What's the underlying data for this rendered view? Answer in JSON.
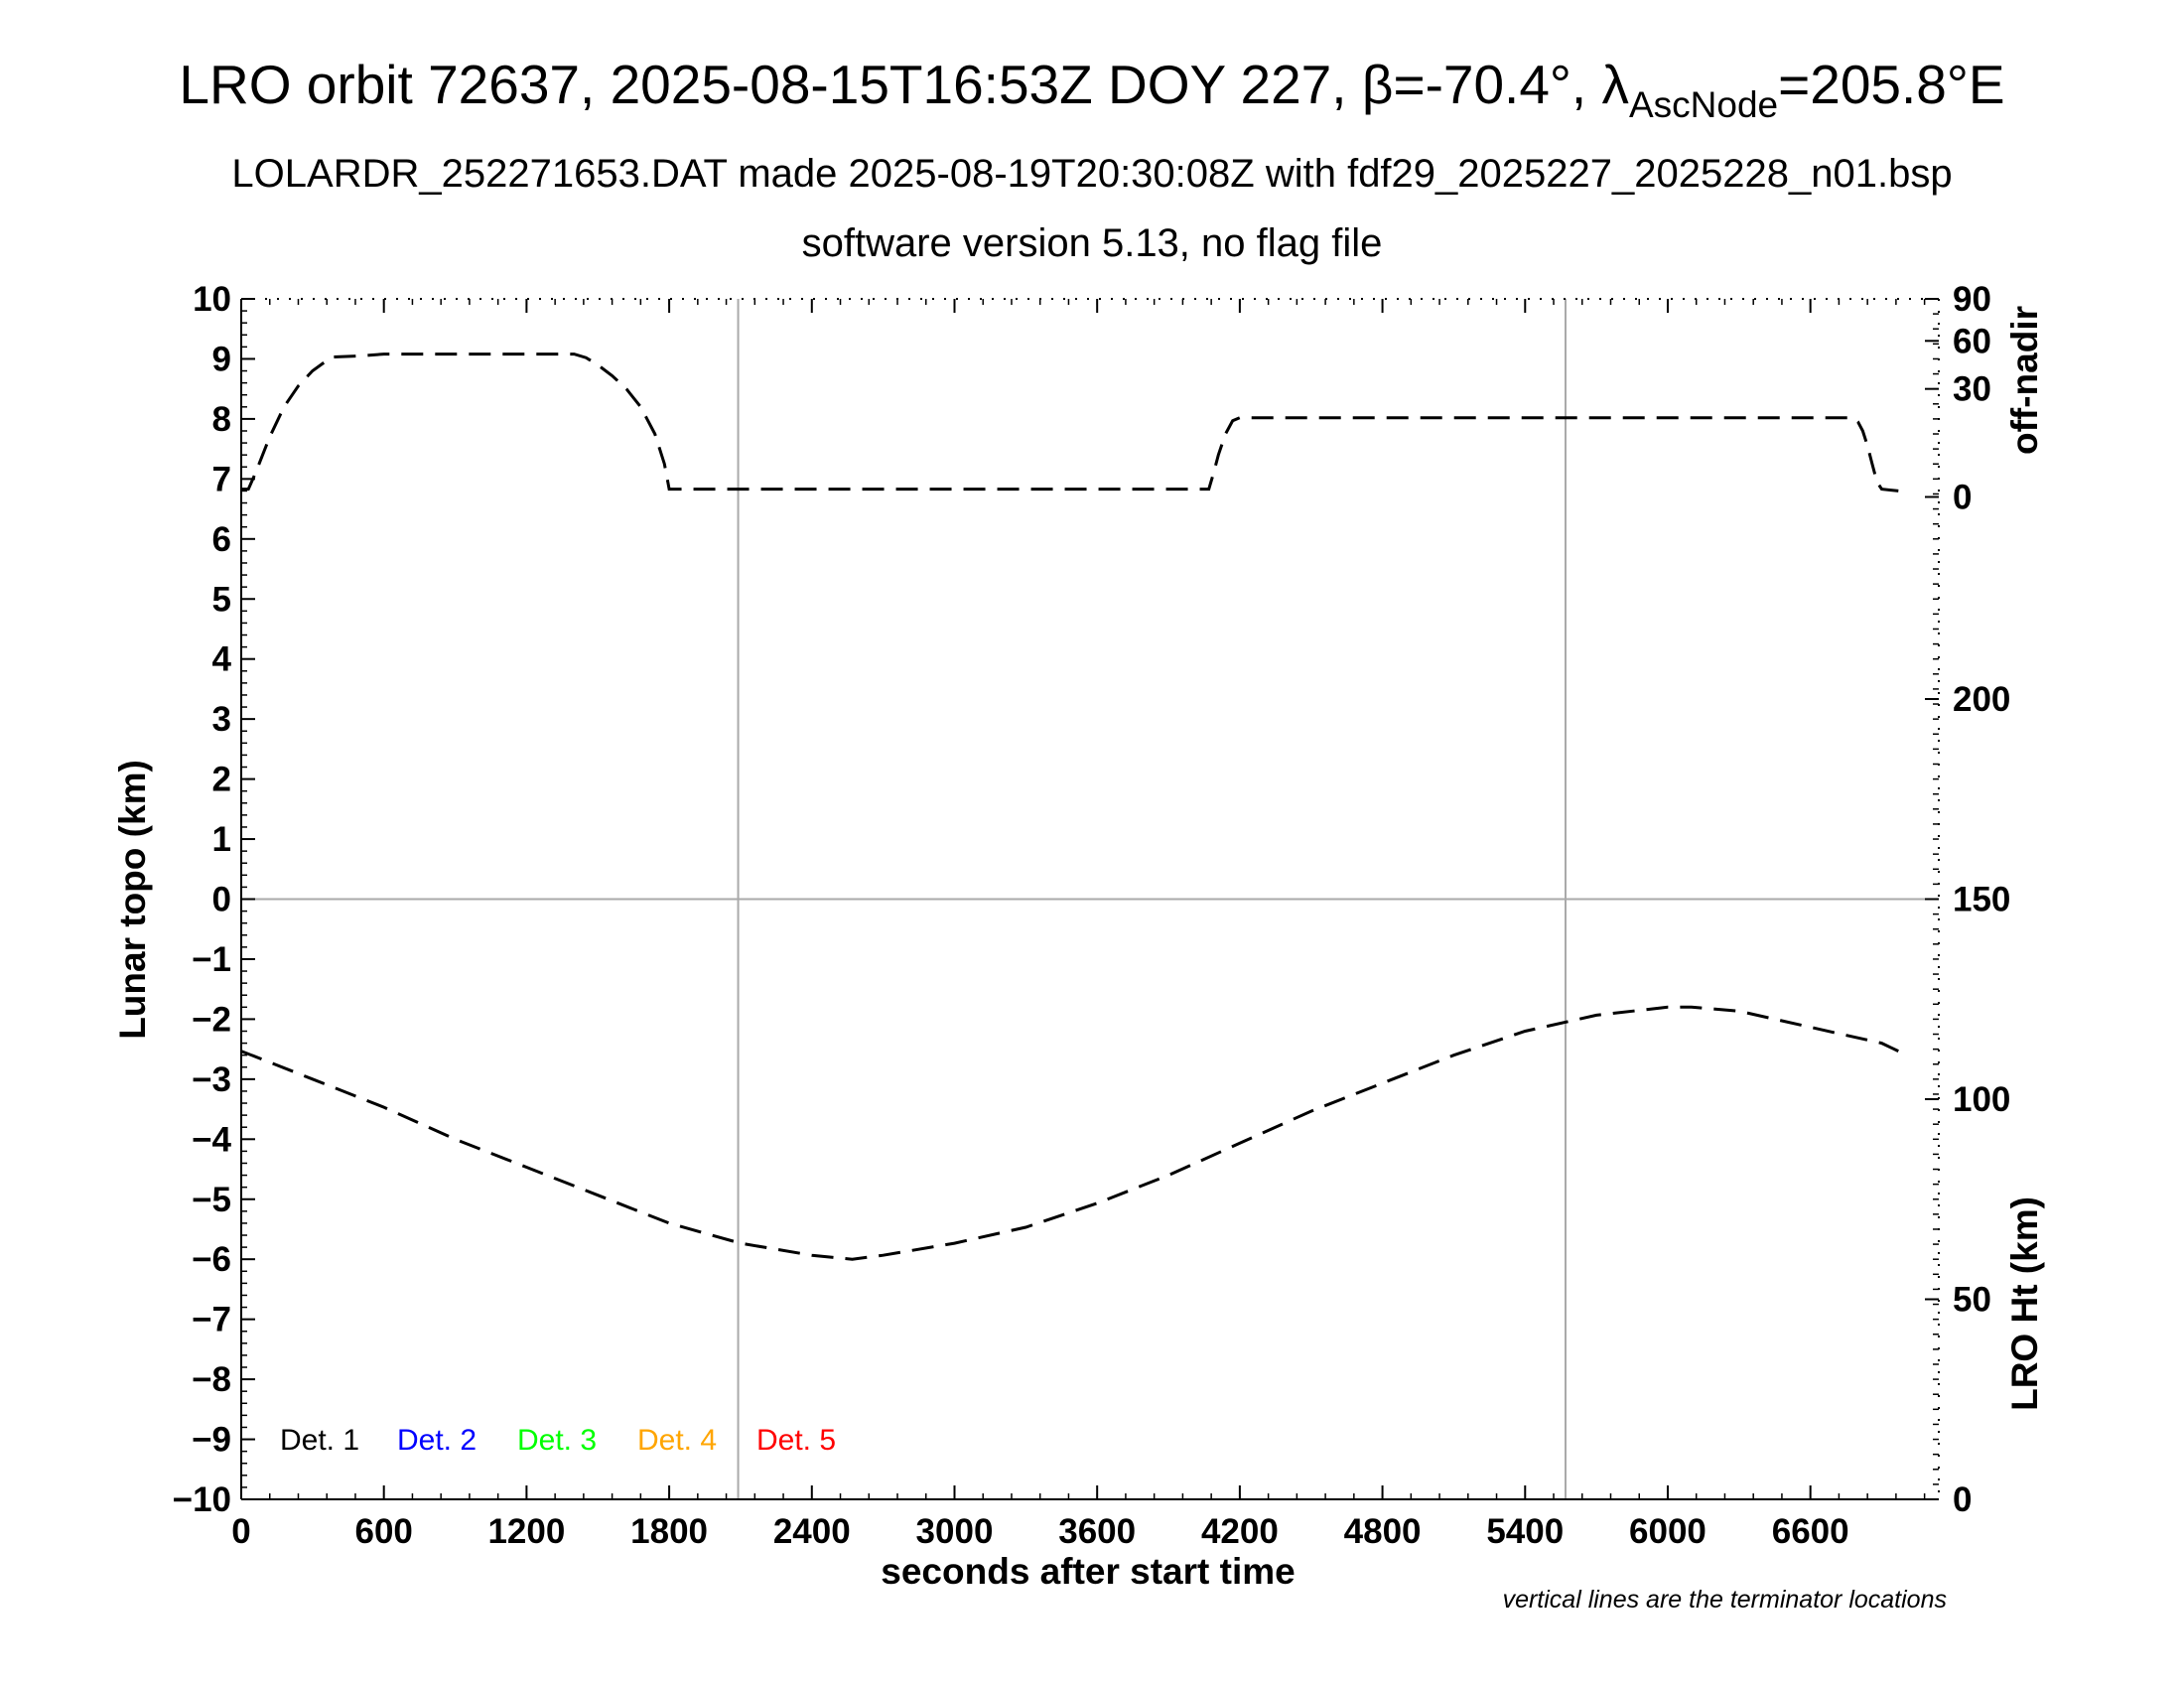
{
  "header": {
    "title_main": "LRO orbit 72637, 2025-08-15T16:53Z DOY 227, ",
    "title_beta": "β=-70.4°, ",
    "title_lambda": "λ",
    "title_lambda_sub": "AscNode",
    "title_lambda_val": "=205.8°E",
    "subtitle_1": "LOLARDR_252271653.DAT made 2025-08-19T20:30:08Z with fdf29_2025227_2025228_n01.bsp",
    "subtitle_2": "software version 5.13, no flag file"
  },
  "footnote": "vertical lines are the terminator locations",
  "chart_data": {
    "type": "line",
    "xlabel": "seconds after start time",
    "ylabel": "Lunar topo (km)",
    "xlim": [
      0,
      7140
    ],
    "ylim": [
      -10,
      10
    ],
    "x_ticks": [
      0,
      600,
      1200,
      1800,
      2400,
      3000,
      3600,
      4200,
      4800,
      5400,
      6000,
      6600
    ],
    "y_ticks": [
      10,
      9,
      8,
      7,
      6,
      5,
      4,
      3,
      2,
      1,
      0,
      -1,
      -2,
      -3,
      -4,
      -5,
      -6,
      -7,
      -8,
      -9,
      -10
    ],
    "y_tick_labels": [
      "10",
      "9",
      "8",
      "7",
      "6",
      "5",
      "4",
      "3",
      "2",
      "1",
      "0",
      "−1",
      "−2",
      "−3",
      "−4",
      "−5",
      "−6",
      "−7",
      "−8",
      "−9",
      "−10"
    ],
    "terminator_lines_x": [
      2090,
      5570
    ],
    "zero_line_y": 0,
    "right_axis_top": {
      "label": "off-nadir",
      "ticks": [
        0,
        30,
        60,
        90
      ],
      "maps_to_topo": [
        6.7,
        8.5,
        9.3,
        10
      ]
    },
    "right_axis_bottom": {
      "label": "LRO Ht (km)",
      "ticks": [
        0,
        50,
        100,
        150,
        200
      ],
      "range_km": [
        0,
        300
      ]
    },
    "legend": {
      "placement": "bottom-left",
      "entries": [
        {
          "label": "Det. 1",
          "color": "#000000"
        },
        {
          "label": "Det. 2",
          "color": "#0000ff"
        },
        {
          "label": "Det. 3",
          "color": "#00ff00"
        },
        {
          "label": "Det. 4",
          "color": "#ffa500"
        },
        {
          "label": "Det. 5",
          "color": "#ff0000"
        }
      ]
    },
    "series": [
      {
        "style": "dashed",
        "axis": "off-nadir",
        "x": [
          0,
          30,
          60,
          120,
          180,
          240,
          300,
          380,
          500,
          600,
          1400,
          1450,
          1500,
          1560,
          1620,
          1680,
          1740,
          1780,
          1800,
          4070,
          4090,
          4110,
          4140,
          4170,
          4200,
          6780,
          6800,
          6820,
          6840,
          6860,
          6880,
          6900,
          6970
        ],
        "values": [
          6.83,
          6.83,
          7.1,
          7.7,
          8.2,
          8.55,
          8.8,
          9.03,
          9.05,
          9.08,
          9.08,
          9.02,
          8.9,
          8.72,
          8.5,
          8.2,
          7.75,
          7.25,
          6.83,
          6.83,
          7.1,
          7.4,
          7.75,
          7.97,
          8.02,
          8.02,
          7.95,
          7.8,
          7.55,
          7.25,
          6.95,
          6.83,
          6.8
        ]
      },
      {
        "style": "dashed",
        "axis": "LRO Ht (km)",
        "x": [
          0,
          300,
          600,
          900,
          1200,
          1500,
          1800,
          2100,
          2400,
          2570,
          2700,
          3000,
          3300,
          3600,
          3900,
          4200,
          4500,
          4800,
          5100,
          5400,
          5700,
          6000,
          6100,
          6300,
          6600,
          6900,
          6970
        ],
        "values": [
          112,
          105,
          98,
          90,
          83,
          76,
          69,
          64,
          61,
          60,
          61,
          64,
          68,
          74,
          81,
          89,
          97,
          104,
          111,
          117,
          121,
          123,
          123,
          122,
          118,
          114,
          112
        ]
      }
    ]
  }
}
